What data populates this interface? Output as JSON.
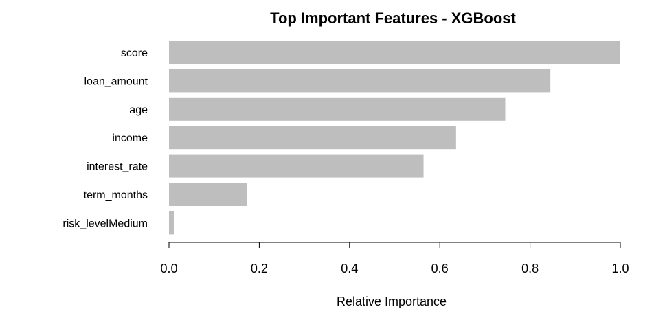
{
  "chart_data": {
    "type": "bar",
    "orientation": "horizontal",
    "title": "Top Important Features - XGBoost",
    "xlabel": "Relative Importance",
    "ylabel": "",
    "categories": [
      "score",
      "loan_amount",
      "age",
      "income",
      "interest_rate",
      "term_months",
      "risk_levelMedium"
    ],
    "values": [
      1.0,
      0.845,
      0.745,
      0.636,
      0.564,
      0.172,
      0.011
    ],
    "xlim": [
      0,
      1
    ],
    "xticks": [
      0,
      0.2,
      0.4,
      0.6,
      0.8,
      1.0
    ],
    "xtick_labels": [
      "0.0",
      "0.2",
      "0.4",
      "0.6",
      "0.8",
      "1.0"
    ],
    "bar_color": "#bebebe",
    "grid": false,
    "legend": "none"
  }
}
